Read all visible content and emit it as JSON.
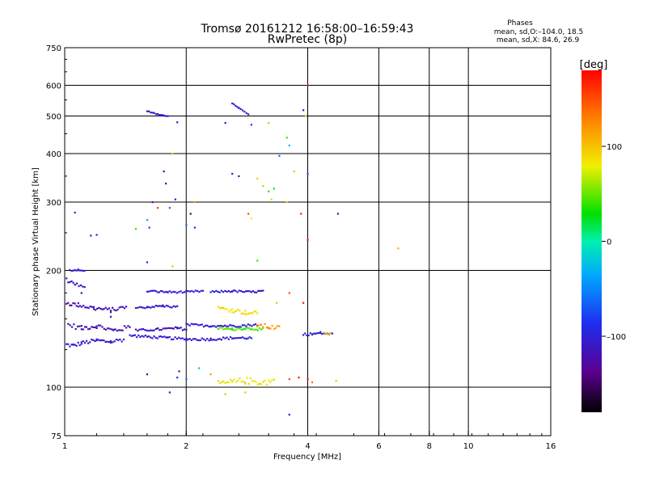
{
  "title": {
    "line1": "Tromsø 20161212 16:58:00–16:59:43",
    "line2": "RwPretec (8p)"
  },
  "stats": {
    "label": "Phases",
    "line_o": "mean, sd,O:–104.0, 18.5",
    "line_x": "mean, sd,X: 84.6, 26.9"
  },
  "colorbar": {
    "unit": "[deg]",
    "ticks": [
      {
        "value": 100,
        "label": "100"
      },
      {
        "value": 0,
        "label": "0"
      },
      {
        "value": -100,
        "label": "–100"
      }
    ],
    "range": [
      -180,
      180
    ]
  },
  "chart_data": {
    "type": "scatter",
    "xlabel": "Frequency [MHz]",
    "ylabel": "Stationary phase Virtual Height [km]",
    "x_scale": "log",
    "y_scale": "log",
    "xlim": [
      1,
      16
    ],
    "ylim": [
      75,
      750
    ],
    "x_ticks": [
      {
        "value": 1,
        "label": "1"
      },
      {
        "value": 2,
        "label": "2"
      },
      {
        "value": 4,
        "label": "4"
      },
      {
        "value": 6,
        "label": "6"
      },
      {
        "value": 8,
        "label": "8"
      },
      {
        "value": 10,
        "label": "10"
      },
      {
        "value": 16,
        "label": "16"
      }
    ],
    "x_grid": [
      2,
      4,
      6,
      8,
      10
    ],
    "y_ticks": [
      {
        "value": 75,
        "label": "75"
      },
      {
        "value": 100,
        "label": "100"
      },
      {
        "value": 200,
        "label": "200"
      },
      {
        "value": 300,
        "label": "300"
      },
      {
        "value": 400,
        "label": "400"
      },
      {
        "value": 500,
        "label": "500"
      },
      {
        "value": 600,
        "label": "600"
      },
      {
        "value": 750,
        "label": "750"
      }
    ],
    "y_grid": [
      100,
      200,
      300,
      400,
      500,
      600
    ],
    "grid": true,
    "color_by": "phase (deg)",
    "traces": [
      {
        "f": [
          1.0,
          1.05,
          1.1,
          1.2,
          1.3,
          1.4
        ],
        "h": [
          129,
          128,
          130,
          132,
          131,
          133
        ],
        "phase": -105,
        "spread": 1.5
      },
      {
        "f": [
          1.02,
          1.1,
          1.2,
          1.32,
          1.45
        ],
        "h": [
          145,
          142,
          144,
          140,
          143
        ],
        "phase": -120,
        "spread": 2
      },
      {
        "f": [
          1.0,
          1.08,
          1.18,
          1.3,
          1.42
        ],
        "h": [
          165,
          163,
          160,
          158,
          161
        ],
        "phase": -118,
        "spread": 2
      },
      {
        "f": [
          1.0,
          1.06,
          1.12
        ],
        "h": [
          190,
          185,
          180
        ],
        "phase": -115,
        "spread": 2
      },
      {
        "f": [
          1.03,
          1.08,
          1.12
        ],
        "h": [
          200,
          201,
          199
        ],
        "phase": -105,
        "spread": 1
      },
      {
        "f": [
          1.45,
          1.6,
          1.8,
          2.0,
          2.3,
          2.6,
          2.9
        ],
        "h": [
          136,
          135,
          134,
          133,
          133,
          134,
          134
        ],
        "phase": -103,
        "spread": 1
      },
      {
        "f": [
          1.5,
          1.7,
          1.9,
          2.0
        ],
        "h": [
          140,
          141,
          142,
          141
        ],
        "phase": -112,
        "spread": 1
      },
      {
        "f": [
          1.5,
          1.6,
          1.75,
          1.9
        ],
        "h": [
          160,
          161,
          162,
          161
        ],
        "phase": -108,
        "spread": 1
      },
      {
        "f": [
          1.6,
          1.8,
          2.0,
          2.2
        ],
        "h": [
          177,
          176,
          176,
          177
        ],
        "phase": -103,
        "spread": 1
      },
      {
        "f": [
          2.3,
          2.6,
          2.9,
          3.1
        ],
        "h": [
          176,
          177,
          176,
          177
        ],
        "phase": -103,
        "spread": 1
      },
      {
        "f": [
          2.0,
          2.3,
          2.7,
          3.0
        ],
        "h": [
          145,
          144,
          144,
          145
        ],
        "phase": -102,
        "spread": 1
      },
      {
        "f": [
          2.4,
          2.6,
          2.8,
          3.0
        ],
        "h": [
          160,
          158,
          156,
          155
        ],
        "phase": 90,
        "spread": 2
      },
      {
        "f": [
          3.0,
          3.2,
          3.4
        ],
        "h": [
          145,
          143,
          142
        ],
        "phase": 120,
        "spread": 2
      },
      {
        "f": [
          2.4,
          2.6,
          2.8,
          3.1
        ],
        "h": [
          142,
          141,
          142,
          141
        ],
        "phase": 45,
        "spread": 1
      },
      {
        "f": [
          2.4,
          2.6,
          2.8,
          3.1,
          3.3
        ],
        "h": [
          102,
          103,
          104,
          103,
          104
        ],
        "phase": 82,
        "spread": 2
      },
      {
        "f": [
          3.9,
          4.1,
          4.3,
          4.6
        ],
        "h": [
          137,
          137,
          138,
          137
        ],
        "phase": -103,
        "spread": 1
      },
      {
        "f": [
          4.4,
          4.55
        ],
        "h": [
          138,
          137
        ],
        "phase": 95,
        "spread": 1
      },
      {
        "f": [
          1.6,
          1.7,
          1.8
        ],
        "h": [
          515,
          505,
          500
        ],
        "phase": -108,
        "spread": 1
      },
      {
        "f": [
          2.6,
          2.7,
          2.85
        ],
        "h": [
          540,
          525,
          505
        ],
        "phase": -110,
        "spread": 1
      }
    ],
    "points": [
      {
        "f": 1.06,
        "h": 282,
        "phase": -100
      },
      {
        "f": 1.2,
        "h": 247,
        "phase": -90
      },
      {
        "f": 1.16,
        "h": 246,
        "phase": -105
      },
      {
        "f": 1.5,
        "h": 256,
        "phase": 40
      },
      {
        "f": 1.6,
        "h": 270,
        "phase": -40
      },
      {
        "f": 1.62,
        "h": 258,
        "phase": -80
      },
      {
        "f": 1.65,
        "h": 300,
        "phase": -110
      },
      {
        "f": 1.7,
        "h": 290,
        "phase": 160
      },
      {
        "f": 1.76,
        "h": 360,
        "phase": -130
      },
      {
        "f": 1.82,
        "h": 290,
        "phase": -60
      },
      {
        "f": 1.88,
        "h": 305,
        "phase": -100
      },
      {
        "f": 1.85,
        "h": 400,
        "phase": 100
      },
      {
        "f": 1.78,
        "h": 335,
        "phase": -120
      },
      {
        "f": 1.9,
        "h": 482,
        "phase": -110
      },
      {
        "f": 1.6,
        "h": 210,
        "phase": -115
      },
      {
        "f": 1.85,
        "h": 205,
        "phase": 60
      },
      {
        "f": 2.0,
        "h": 262,
        "phase": -60
      },
      {
        "f": 2.05,
        "h": 280,
        "phase": -150
      },
      {
        "f": 2.1,
        "h": 300,
        "phase": 120
      },
      {
        "f": 2.1,
        "h": 258,
        "phase": -90
      },
      {
        "f": 2.6,
        "h": 355,
        "phase": -115
      },
      {
        "f": 2.7,
        "h": 350,
        "phase": -120
      },
      {
        "f": 2.85,
        "h": 280,
        "phase": 150
      },
      {
        "f": 2.9,
        "h": 272,
        "phase": 80
      },
      {
        "f": 3.0,
        "h": 345,
        "phase": 100
      },
      {
        "f": 3.1,
        "h": 330,
        "phase": 60
      },
      {
        "f": 3.2,
        "h": 320,
        "phase": 40
      },
      {
        "f": 3.3,
        "h": 325,
        "phase": 20
      },
      {
        "f": 3.25,
        "h": 305,
        "phase": 70
      },
      {
        "f": 3.4,
        "h": 395,
        "phase": -60
      },
      {
        "f": 3.6,
        "h": 420,
        "phase": -30
      },
      {
        "f": 3.55,
        "h": 440,
        "phase": 40
      },
      {
        "f": 3.7,
        "h": 360,
        "phase": 60
      },
      {
        "f": 3.55,
        "h": 300,
        "phase": 100
      },
      {
        "f": 3.85,
        "h": 280,
        "phase": 170
      },
      {
        "f": 4.0,
        "h": 355,
        "phase": -70
      },
      {
        "f": 4.0,
        "h": 240,
        "phase": 170
      },
      {
        "f": 3.95,
        "h": 500,
        "phase": 100
      },
      {
        "f": 3.9,
        "h": 518,
        "phase": -110
      },
      {
        "f": 4.0,
        "h": 600,
        "phase": 170
      },
      {
        "f": 4.75,
        "h": 280,
        "phase": -115
      },
      {
        "f": 6.7,
        "h": 228,
        "phase": 110
      },
      {
        "f": 3.0,
        "h": 212,
        "phase": 40
      },
      {
        "f": 3.35,
        "h": 165,
        "phase": 60
      },
      {
        "f": 2.9,
        "h": 475,
        "phase": -80
      },
      {
        "f": 3.2,
        "h": 480,
        "phase": 60
      },
      {
        "f": 2.5,
        "h": 480,
        "phase": -110
      },
      {
        "f": 3.6,
        "h": 85,
        "phase": -110
      },
      {
        "f": 1.92,
        "h": 110,
        "phase": -115
      },
      {
        "f": 1.9,
        "h": 106,
        "phase": -90
      },
      {
        "f": 2.0,
        "h": 105,
        "phase": -60
      },
      {
        "f": 1.82,
        "h": 97,
        "phase": -120
      },
      {
        "f": 1.6,
        "h": 108,
        "phase": -140
      },
      {
        "f": 2.15,
        "h": 112,
        "phase": 20
      },
      {
        "f": 2.3,
        "h": 108,
        "phase": 120
      },
      {
        "f": 2.5,
        "h": 96,
        "phase": 60
      },
      {
        "f": 2.8,
        "h": 97,
        "phase": 100
      },
      {
        "f": 3.6,
        "h": 105,
        "phase": 150
      },
      {
        "f": 3.8,
        "h": 106,
        "phase": 170
      },
      {
        "f": 4.0,
        "h": 105,
        "phase": 170
      },
      {
        "f": 4.1,
        "h": 103,
        "phase": 140
      },
      {
        "f": 4.7,
        "h": 104,
        "phase": 100
      },
      {
        "f": 3.6,
        "h": 175,
        "phase": 150
      },
      {
        "f": 3.9,
        "h": 165,
        "phase": 170
      },
      {
        "f": 1.1,
        "h": 175,
        "phase": -130
      },
      {
        "f": 1.3,
        "h": 152,
        "phase": -120
      }
    ]
  }
}
